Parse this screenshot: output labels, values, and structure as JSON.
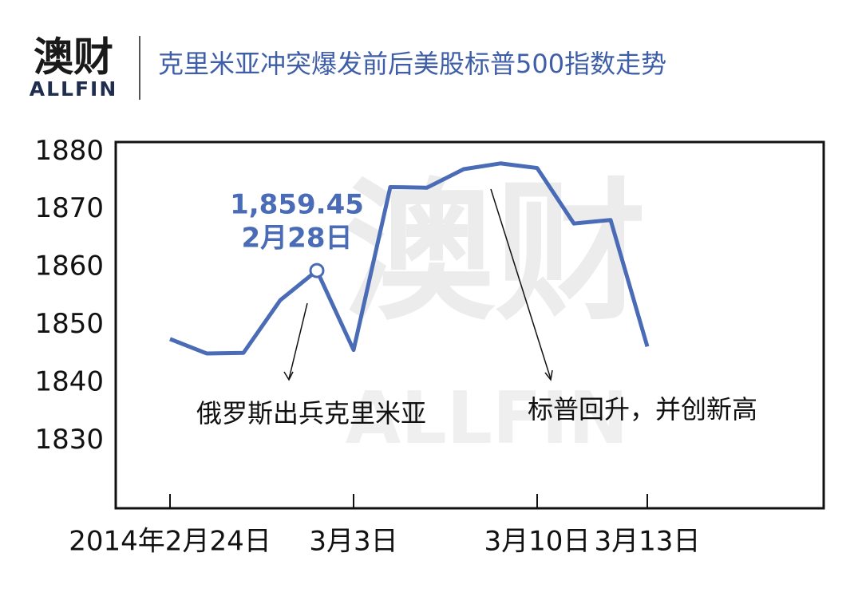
{
  "header": {
    "logo": "澳财",
    "logo_en": "ALLFIN"
  },
  "chart_data": {
    "type": "line",
    "title": "克里米亚冲突爆发前后美股标普500指数走势",
    "categories": [
      "2014年2月24日",
      null,
      null,
      null,
      null,
      "3月3日",
      null,
      null,
      null,
      null,
      "3月10日",
      null,
      null,
      "3月13日"
    ],
    "series": [
      {
        "name": "标普500指数",
        "color": "#4a6bb5",
        "values": [
          1847.6,
          1845.1,
          1845.2,
          1854.3,
          1859.45,
          1845.7,
          1873.9,
          1873.8,
          1877.0,
          1878.0,
          1877.2,
          1867.6,
          1868.2,
          1846.3
        ],
        "value_labels": [
          null,
          null,
          null,
          null,
          "1,859.45",
          null,
          null,
          null,
          null,
          null,
          null,
          null,
          null,
          null
        ]
      }
    ],
    "highlight_date": "2月28日",
    "annotations": [
      "俄罗斯出兵克里米亚",
      "标普回升，并创新高"
    ],
    "ylim": [
      1818.3,
      1881.7
    ],
    "yticks": [
      1830,
      1840,
      1850,
      1860,
      1870,
      1880
    ],
    "grid": false
  }
}
